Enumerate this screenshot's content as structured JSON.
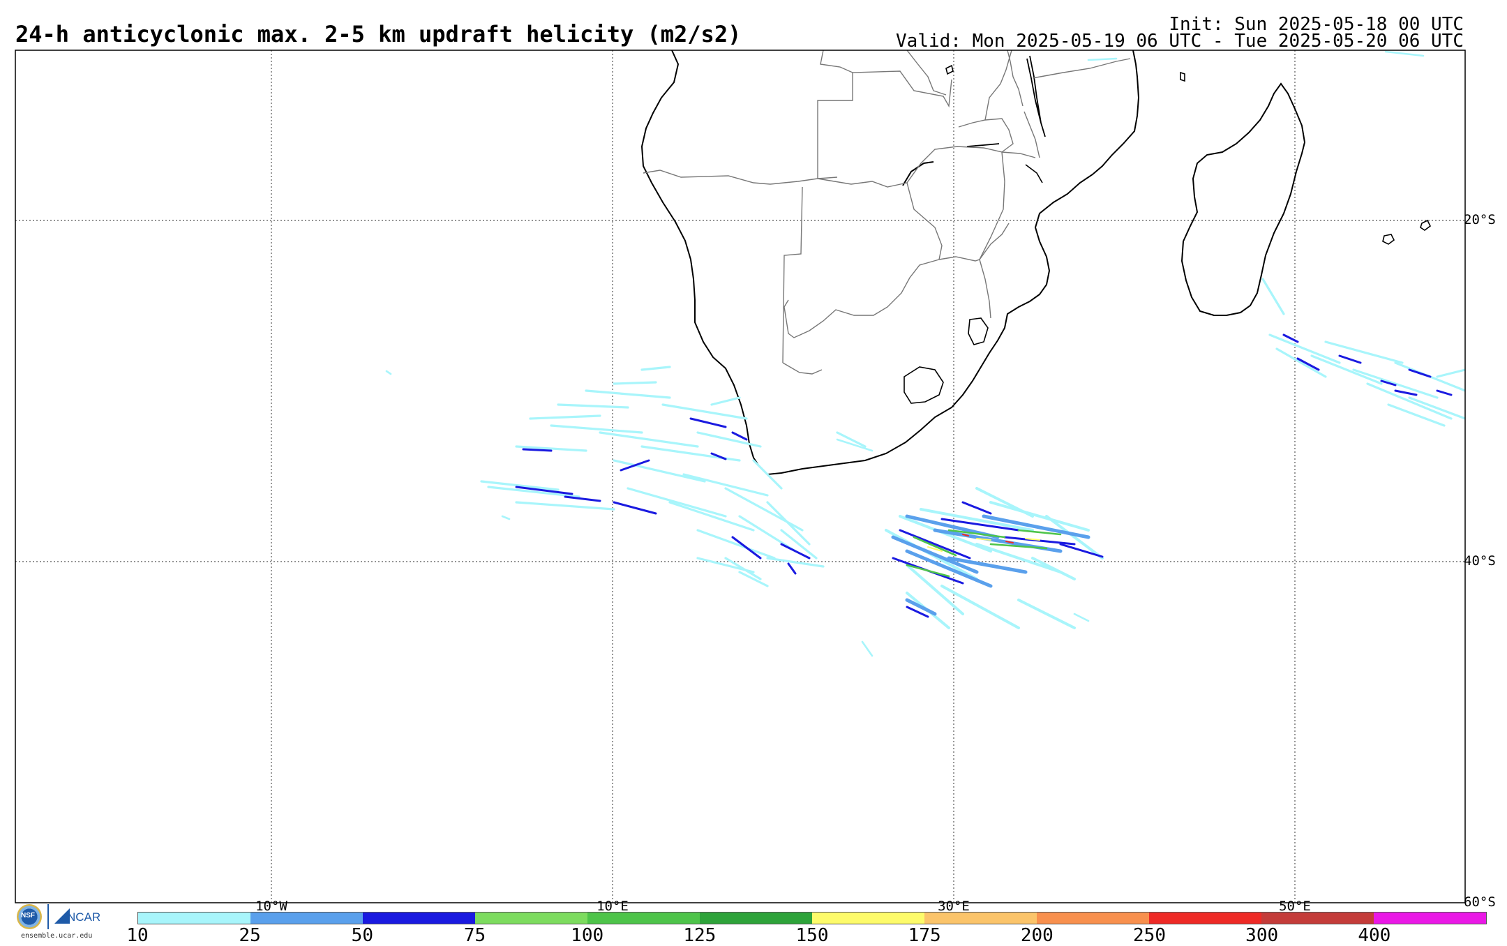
{
  "header": {
    "title": "24-h anticyclonic max. 2-5 km updraft helicity (m2/s2)",
    "init": "Init: Sun 2025-05-18 00 UTC",
    "valid": "Valid: Mon 2025-05-19 06 UTC - Tue 2025-05-20 06 UTC"
  },
  "map": {
    "lat_labels": [
      "20°S",
      "40°S",
      "60°S"
    ],
    "lon_labels": [
      "10°W",
      "10°E",
      "30°E",
      "50°E"
    ],
    "gridlines": "dotted",
    "colors": {
      "coastline": "#000000",
      "borders": "#777777",
      "frame": "#000000"
    }
  },
  "colorbar": {
    "colors": [
      "#a8f5fb",
      "#5aa0ec",
      "#1a1ae0",
      "#7ddc5f",
      "#4ec44a",
      "#2ea33a",
      "#fdfb6a",
      "#fbc46a",
      "#f8904e",
      "#ee2a26",
      "#c43c3a",
      "#ea18e6"
    ],
    "labels": [
      "10",
      "25",
      "50",
      "75",
      "100",
      "125",
      "150",
      "175",
      "200",
      "250",
      "300",
      "400"
    ]
  },
  "logos": {
    "nsf": "NSF",
    "ncar": "NCAR",
    "url": "ensemble.ucar.edu"
  }
}
